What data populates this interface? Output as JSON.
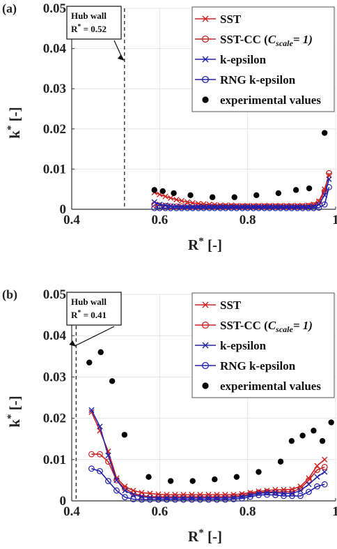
{
  "chart_data": [
    {
      "type": "line",
      "panel_label": "(a)",
      "xlabel": "R",
      "xlabel_sup": "*",
      "xlabel_unit": "[-]",
      "ylabel": "k",
      "ylabel_sup": "*",
      "ylabel_unit": "[-]",
      "xlim": [
        0.4,
        1.0
      ],
      "ylim": [
        0,
        0.05
      ],
      "xticks": [
        "0.4",
        "0.6",
        "0.8",
        "1"
      ],
      "yticks": [
        "0",
        "0.01",
        "0.02",
        "0.03",
        "0.04",
        "0.05"
      ],
      "grid": true,
      "legend_position": "top-right",
      "hub_wall": {
        "x": 0.52,
        "title": "Hub wall",
        "label": "R",
        "sup": "*",
        "value": " = 0.52"
      },
      "series": [
        {
          "name": "SST",
          "color": "#cc2222",
          "marker": "x",
          "x": [
            0.588,
            0.6,
            0.613,
            0.625,
            0.638,
            0.65,
            0.663,
            0.675,
            0.688,
            0.7,
            0.713,
            0.725,
            0.738,
            0.75,
            0.763,
            0.775,
            0.788,
            0.8,
            0.813,
            0.825,
            0.838,
            0.85,
            0.863,
            0.875,
            0.888,
            0.9,
            0.913,
            0.925,
            0.938,
            0.95,
            0.962,
            0.975,
            0.985
          ],
          "y": [
            0.0042,
            0.0037,
            0.0032,
            0.0028,
            0.0024,
            0.0021,
            0.0018,
            0.0016,
            0.0014,
            0.0013,
            0.0012,
            0.0011,
            0.001,
            0.001,
            0.001,
            0.0009,
            0.0009,
            0.0009,
            0.0009,
            0.0009,
            0.0009,
            0.0009,
            0.0009,
            0.0009,
            0.0009,
            0.0009,
            0.0009,
            0.0009,
            0.001,
            0.0012,
            0.002,
            0.005,
            0.0085
          ]
        },
        {
          "name": "SST-CC",
          "color": "#cc2222",
          "marker": "o",
          "x": [
            0.588,
            0.6,
            0.613,
            0.625,
            0.638,
            0.65,
            0.663,
            0.675,
            0.688,
            0.7,
            0.713,
            0.725,
            0.738,
            0.75,
            0.763,
            0.775,
            0.788,
            0.8,
            0.813,
            0.825,
            0.838,
            0.85,
            0.863,
            0.875,
            0.888,
            0.9,
            0.913,
            0.925,
            0.938,
            0.95,
            0.962,
            0.975,
            0.985
          ],
          "y": [
            0.0012,
            0.0009,
            0.0008,
            0.0007,
            0.0007,
            0.0007,
            0.0007,
            0.0007,
            0.0007,
            0.0007,
            0.0007,
            0.0007,
            0.0007,
            0.0007,
            0.0007,
            0.0007,
            0.0007,
            0.0007,
            0.0007,
            0.0007,
            0.0007,
            0.0007,
            0.0007,
            0.0007,
            0.0007,
            0.0007,
            0.0007,
            0.0007,
            0.0008,
            0.001,
            0.0018,
            0.0045,
            0.009
          ]
        },
        {
          "name": "k-epsilon",
          "color": "#2222aa",
          "marker": "x",
          "x": [
            0.588,
            0.6,
            0.613,
            0.625,
            0.638,
            0.65,
            0.663,
            0.675,
            0.688,
            0.7,
            0.713,
            0.725,
            0.738,
            0.75,
            0.763,
            0.775,
            0.788,
            0.8,
            0.813,
            0.825,
            0.838,
            0.85,
            0.863,
            0.875,
            0.888,
            0.9,
            0.913,
            0.925,
            0.938,
            0.95,
            0.962,
            0.975,
            0.985
          ],
          "y": [
            0.0018,
            0.0012,
            0.001,
            0.0008,
            0.0007,
            0.0006,
            0.0006,
            0.0006,
            0.0006,
            0.0006,
            0.0006,
            0.0006,
            0.0006,
            0.0006,
            0.0006,
            0.0006,
            0.0006,
            0.0006,
            0.0006,
            0.0006,
            0.0006,
            0.0006,
            0.0006,
            0.0006,
            0.0006,
            0.0006,
            0.0006,
            0.0006,
            0.0006,
            0.0007,
            0.0012,
            0.0035,
            0.0075
          ]
        },
        {
          "name": "RNG k-epsilon",
          "color": "#2222aa",
          "marker": "o",
          "x": [
            0.588,
            0.6,
            0.613,
            0.625,
            0.638,
            0.65,
            0.663,
            0.675,
            0.688,
            0.7,
            0.713,
            0.725,
            0.738,
            0.75,
            0.763,
            0.775,
            0.788,
            0.8,
            0.813,
            0.825,
            0.838,
            0.85,
            0.863,
            0.875,
            0.888,
            0.9,
            0.913,
            0.925,
            0.938,
            0.95,
            0.962,
            0.975,
            0.985
          ],
          "y": [
            0.0003,
            0.0003,
            0.0003,
            0.0003,
            0.0003,
            0.0003,
            0.0003,
            0.0003,
            0.0003,
            0.0003,
            0.0003,
            0.0003,
            0.0003,
            0.0003,
            0.0003,
            0.0003,
            0.0003,
            0.0003,
            0.0003,
            0.0003,
            0.0003,
            0.0003,
            0.0003,
            0.0003,
            0.0003,
            0.0003,
            0.0003,
            0.0003,
            0.0003,
            0.0003,
            0.0004,
            0.0012,
            0.0055
          ]
        },
        {
          "name": "experimental values",
          "color": "#000000",
          "marker": "dot",
          "x": [
            0.588,
            0.607,
            0.632,
            0.67,
            0.72,
            0.77,
            0.82,
            0.87,
            0.91,
            0.94,
            0.975
          ],
          "y": [
            0.0048,
            0.0045,
            0.004,
            0.0035,
            0.003,
            0.003,
            0.0035,
            0.004,
            0.0048,
            0.0052,
            0.019
          ]
        }
      ]
    },
    {
      "type": "line",
      "panel_label": "(b)",
      "xlabel": "R",
      "xlabel_sup": "*",
      "xlabel_unit": "[-]",
      "ylabel": "k",
      "ylabel_sup": "*",
      "ylabel_unit": "[-]",
      "xlim": [
        0.4,
        1.0
      ],
      "ylim": [
        0,
        0.05
      ],
      "xticks": [
        "0.4",
        "0.6",
        "0.8",
        "1"
      ],
      "yticks": [
        "0",
        "0.01",
        "0.02",
        "0.03",
        "0.04",
        "0.05"
      ],
      "grid": true,
      "legend_position": "top-right",
      "hub_wall": {
        "x": 0.41,
        "title": "Hub wall",
        "label": "R",
        "sup": "*",
        "value": " = 0.41"
      },
      "series": [
        {
          "name": "SST",
          "color": "#cc2222",
          "marker": "x",
          "x": [
            0.445,
            0.464,
            0.483,
            0.502,
            0.521,
            0.54,
            0.559,
            0.578,
            0.597,
            0.616,
            0.635,
            0.654,
            0.673,
            0.692,
            0.711,
            0.73,
            0.749,
            0.768,
            0.787,
            0.806,
            0.825,
            0.844,
            0.863,
            0.882,
            0.901,
            0.92,
            0.939,
            0.958,
            0.975
          ],
          "y": [
            0.0215,
            0.017,
            0.012,
            0.0055,
            0.0035,
            0.0025,
            0.002,
            0.0018,
            0.0016,
            0.0015,
            0.0015,
            0.0015,
            0.0015,
            0.0015,
            0.0015,
            0.0015,
            0.0015,
            0.0015,
            0.0017,
            0.002,
            0.0023,
            0.0025,
            0.0027,
            0.0027,
            0.0028,
            0.0035,
            0.0055,
            0.0085,
            0.01
          ]
        },
        {
          "name": "SST-CC",
          "color": "#cc2222",
          "marker": "o",
          "x": [
            0.445,
            0.464,
            0.483,
            0.502,
            0.521,
            0.54,
            0.559,
            0.578,
            0.597,
            0.616,
            0.635,
            0.654,
            0.673,
            0.692,
            0.711,
            0.73,
            0.749,
            0.768,
            0.787,
            0.806,
            0.825,
            0.844,
            0.863,
            0.882,
            0.901,
            0.92,
            0.939,
            0.958,
            0.975
          ],
          "y": [
            0.0113,
            0.0113,
            0.0095,
            0.005,
            0.003,
            0.0018,
            0.0013,
            0.001,
            0.001,
            0.001,
            0.001,
            0.001,
            0.001,
            0.001,
            0.001,
            0.001,
            0.001,
            0.0011,
            0.0013,
            0.0017,
            0.002,
            0.0022,
            0.0022,
            0.0022,
            0.0022,
            0.003,
            0.005,
            0.0075,
            0.0082
          ]
        },
        {
          "name": "k-epsilon",
          "color": "#2222aa",
          "marker": "x",
          "x": [
            0.445,
            0.464,
            0.483,
            0.502,
            0.521,
            0.54,
            0.559,
            0.578,
            0.597,
            0.616,
            0.635,
            0.654,
            0.673,
            0.692,
            0.711,
            0.73,
            0.749,
            0.768,
            0.787,
            0.806,
            0.825,
            0.844,
            0.863,
            0.882,
            0.901,
            0.92,
            0.939,
            0.958,
            0.975
          ],
          "y": [
            0.022,
            0.018,
            0.011,
            0.005,
            0.0025,
            0.0015,
            0.001,
            0.0008,
            0.0007,
            0.0007,
            0.0007,
            0.0007,
            0.0007,
            0.0007,
            0.0007,
            0.0007,
            0.0007,
            0.0008,
            0.001,
            0.0014,
            0.0018,
            0.002,
            0.002,
            0.0018,
            0.0018,
            0.0025,
            0.004,
            0.0058,
            0.007
          ]
        },
        {
          "name": "RNG k-epsilon",
          "color": "#2222aa",
          "marker": "o",
          "x": [
            0.445,
            0.464,
            0.483,
            0.502,
            0.521,
            0.54,
            0.559,
            0.578,
            0.597,
            0.616,
            0.635,
            0.654,
            0.673,
            0.692,
            0.711,
            0.73,
            0.749,
            0.768,
            0.787,
            0.806,
            0.825,
            0.844,
            0.863,
            0.882,
            0.901,
            0.92,
            0.939,
            0.958,
            0.975
          ],
          "y": [
            0.0078,
            0.0072,
            0.0048,
            0.0025,
            0.0009,
            0.0004,
            0.0003,
            0.0003,
            0.0003,
            0.0003,
            0.0003,
            0.0003,
            0.0003,
            0.0003,
            0.0003,
            0.0003,
            0.0003,
            0.0004,
            0.0006,
            0.001,
            0.0014,
            0.0015,
            0.0014,
            0.0012,
            0.0012,
            0.0012,
            0.0022,
            0.0035,
            0.004
          ]
        },
        {
          "name": "experimental values",
          "color": "#000000",
          "marker": "dot",
          "x": [
            0.44,
            0.466,
            0.492,
            0.52,
            0.575,
            0.625,
            0.675,
            0.725,
            0.775,
            0.825,
            0.875,
            0.9,
            0.925,
            0.95,
            0.97,
            0.99
          ],
          "y": [
            0.0335,
            0.036,
            0.029,
            0.016,
            0.0058,
            0.0048,
            0.0048,
            0.0052,
            0.0058,
            0.007,
            0.0095,
            0.0145,
            0.0158,
            0.017,
            0.0145,
            0.019
          ]
        }
      ]
    }
  ],
  "legend_suffix": {
    "series_name": "SST-CC",
    "open": " (",
    "var": "C",
    "sub": "scale",
    "rest": "= 1)"
  }
}
